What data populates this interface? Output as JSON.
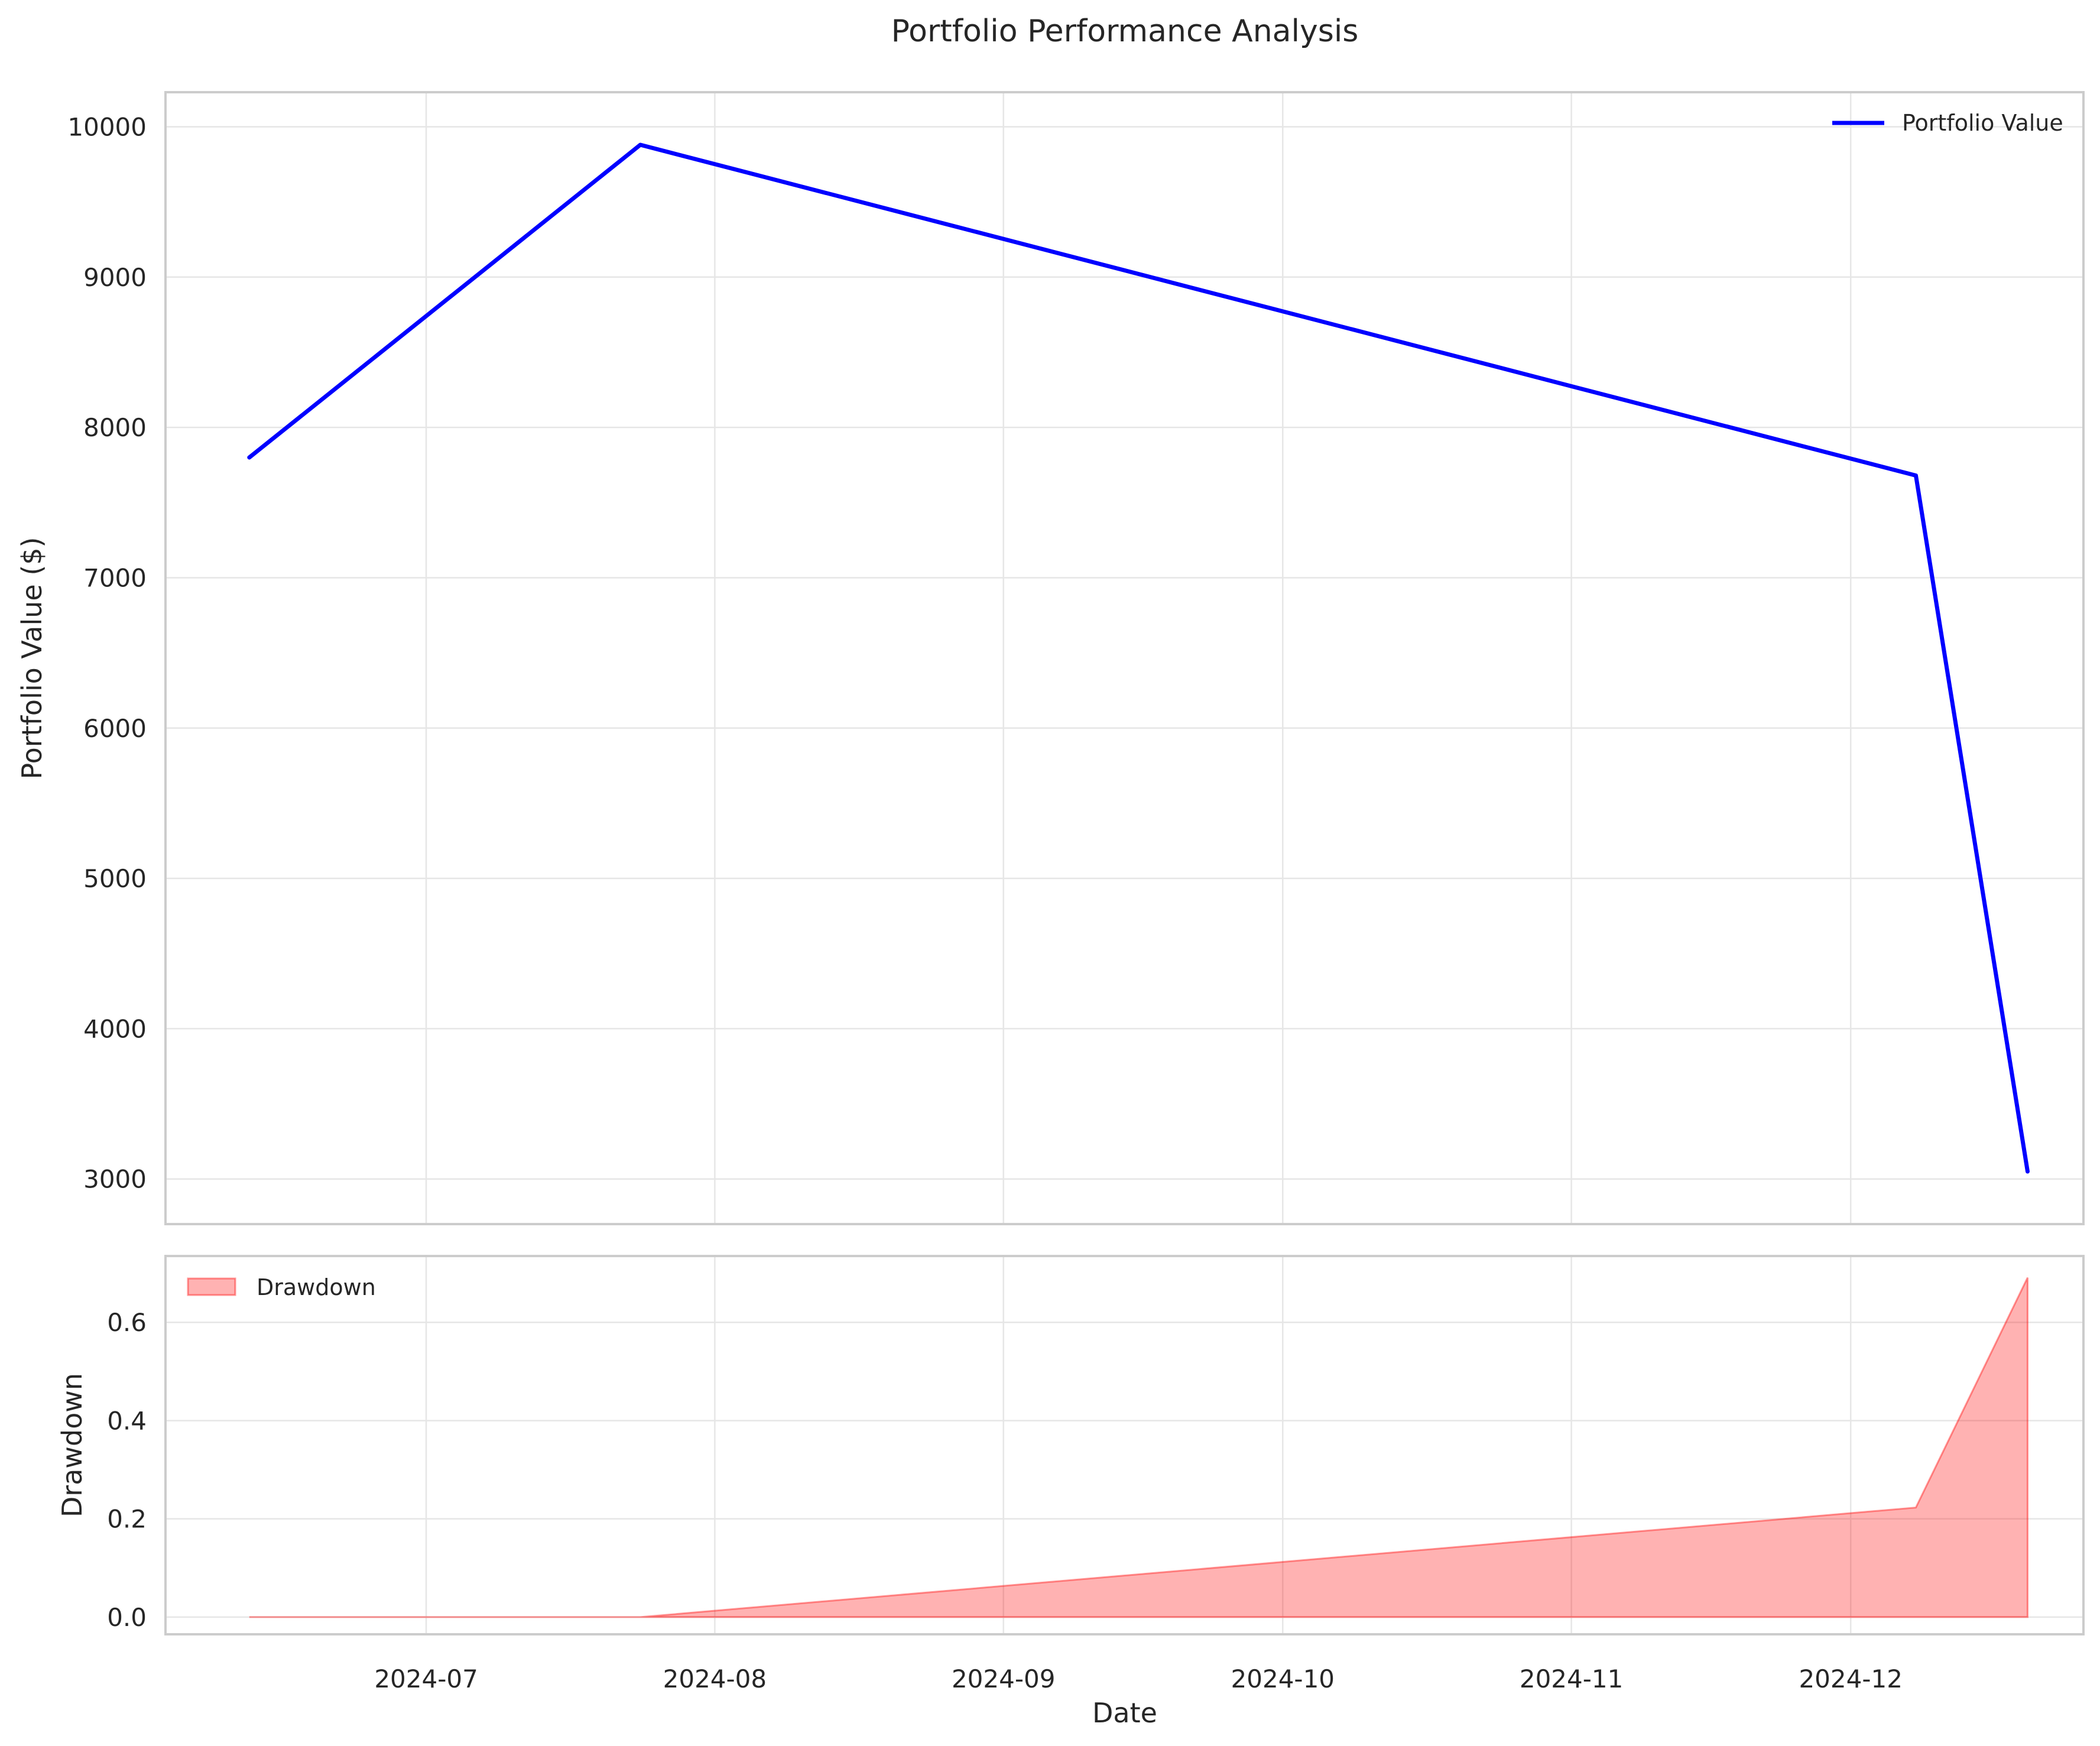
{
  "chart_data": {
    "title": "Portfolio Performance Analysis",
    "xlabel": "Date",
    "x_tick_labels": [
      "2024-07",
      "2024-08",
      "2024-09",
      "2024-10",
      "2024-11",
      "2024-12"
    ],
    "x_tick_dates": [
      "2024-07-01",
      "2024-08-01",
      "2024-09-01",
      "2024-10-01",
      "2024-11-01",
      "2024-12-01"
    ],
    "xlim": [
      "2024-06-03",
      "2024-12-26"
    ],
    "panels": [
      {
        "type": "line",
        "ylabel": "Portfolio Value ($)",
        "ylim": [
          2700,
          10230
        ],
        "yticks": [
          3000,
          4000,
          5000,
          6000,
          7000,
          8000,
          9000,
          10000
        ],
        "grid": true,
        "legend_position": "top-right",
        "series": [
          {
            "name": "Portfolio Value",
            "color": "#0000ff",
            "x": [
              "2024-06-12",
              "2024-07-24",
              "2024-12-08",
              "2024-12-20"
            ],
            "y": [
              7800,
              9880,
              7680,
              3050
            ]
          }
        ]
      },
      {
        "type": "area",
        "ylabel": "Drawdown",
        "ylim": [
          -0.035,
          0.735
        ],
        "yticks": [
          0.0,
          0.2,
          0.4,
          0.6
        ],
        "ytick_labels": [
          "0.0",
          "0.2",
          "0.4",
          "0.6"
        ],
        "grid": true,
        "legend_position": "top-left",
        "series": [
          {
            "name": "Drawdown",
            "color": "#ff0000",
            "x": [
              "2024-06-12",
              "2024-07-24",
              "2024-12-08",
              "2024-12-20"
            ],
            "y": [
              0.0,
              0.0,
              0.223,
              0.691
            ]
          }
        ]
      }
    ]
  }
}
